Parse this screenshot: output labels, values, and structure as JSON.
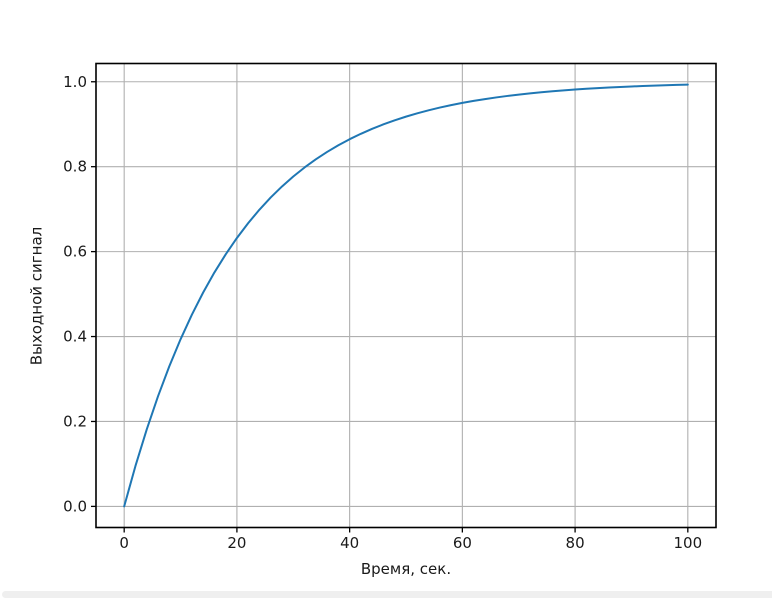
{
  "chart_data": {
    "type": "line",
    "title": "",
    "xlabel": "Время, сек.",
    "ylabel": "Выходной сигнал",
    "x": [
      0,
      2,
      4,
      6,
      8,
      10,
      12,
      14,
      16,
      18,
      20,
      22,
      24,
      26,
      28,
      30,
      32,
      34,
      36,
      38,
      40,
      42,
      44,
      46,
      48,
      50,
      52,
      54,
      56,
      58,
      60,
      62,
      64,
      66,
      68,
      70,
      72,
      74,
      76,
      78,
      80,
      82,
      84,
      86,
      88,
      90,
      92,
      94,
      96,
      98,
      100
    ],
    "y": [
      0.0,
      0.0952,
      0.1813,
      0.2592,
      0.3297,
      0.3935,
      0.4512,
      0.5034,
      0.5507,
      0.5934,
      0.6321,
      0.6671,
      0.6988,
      0.7275,
      0.7534,
      0.7769,
      0.7981,
      0.8173,
      0.8347,
      0.8504,
      0.8647,
      0.8775,
      0.8892,
      0.8997,
      0.9093,
      0.9179,
      0.9257,
      0.9328,
      0.9392,
      0.945,
      0.9502,
      0.955,
      0.9592,
      0.9631,
      0.9666,
      0.9698,
      0.9727,
      0.9753,
      0.9776,
      0.9798,
      0.9817,
      0.9834,
      0.985,
      0.9864,
      0.9877,
      0.9889,
      0.9899,
      0.9909,
      0.9918,
      0.9926,
      0.9933
    ],
    "xlim": [
      -5,
      105
    ],
    "ylim": [
      -0.0497,
      1.043
    ],
    "xticks": [
      0,
      20,
      40,
      60,
      80,
      100
    ],
    "xticklabels": [
      "0",
      "20",
      "40",
      "60",
      "80",
      "100"
    ],
    "yticks": [
      0.0,
      0.2,
      0.4,
      0.6,
      0.8,
      1.0
    ],
    "yticklabels": [
      "0.0",
      "0.2",
      "0.4",
      "0.6",
      "0.8",
      "1.0"
    ],
    "grid": true,
    "legend": "none",
    "line_color": "#1f77b4",
    "line_width": 2,
    "grid_color": "#b0b0b0",
    "spine_color": "#000000",
    "tick_label_color": "#1a1a1a"
  },
  "window": {
    "background": "#ffffff",
    "bottom_bar_color": "#efefef"
  }
}
